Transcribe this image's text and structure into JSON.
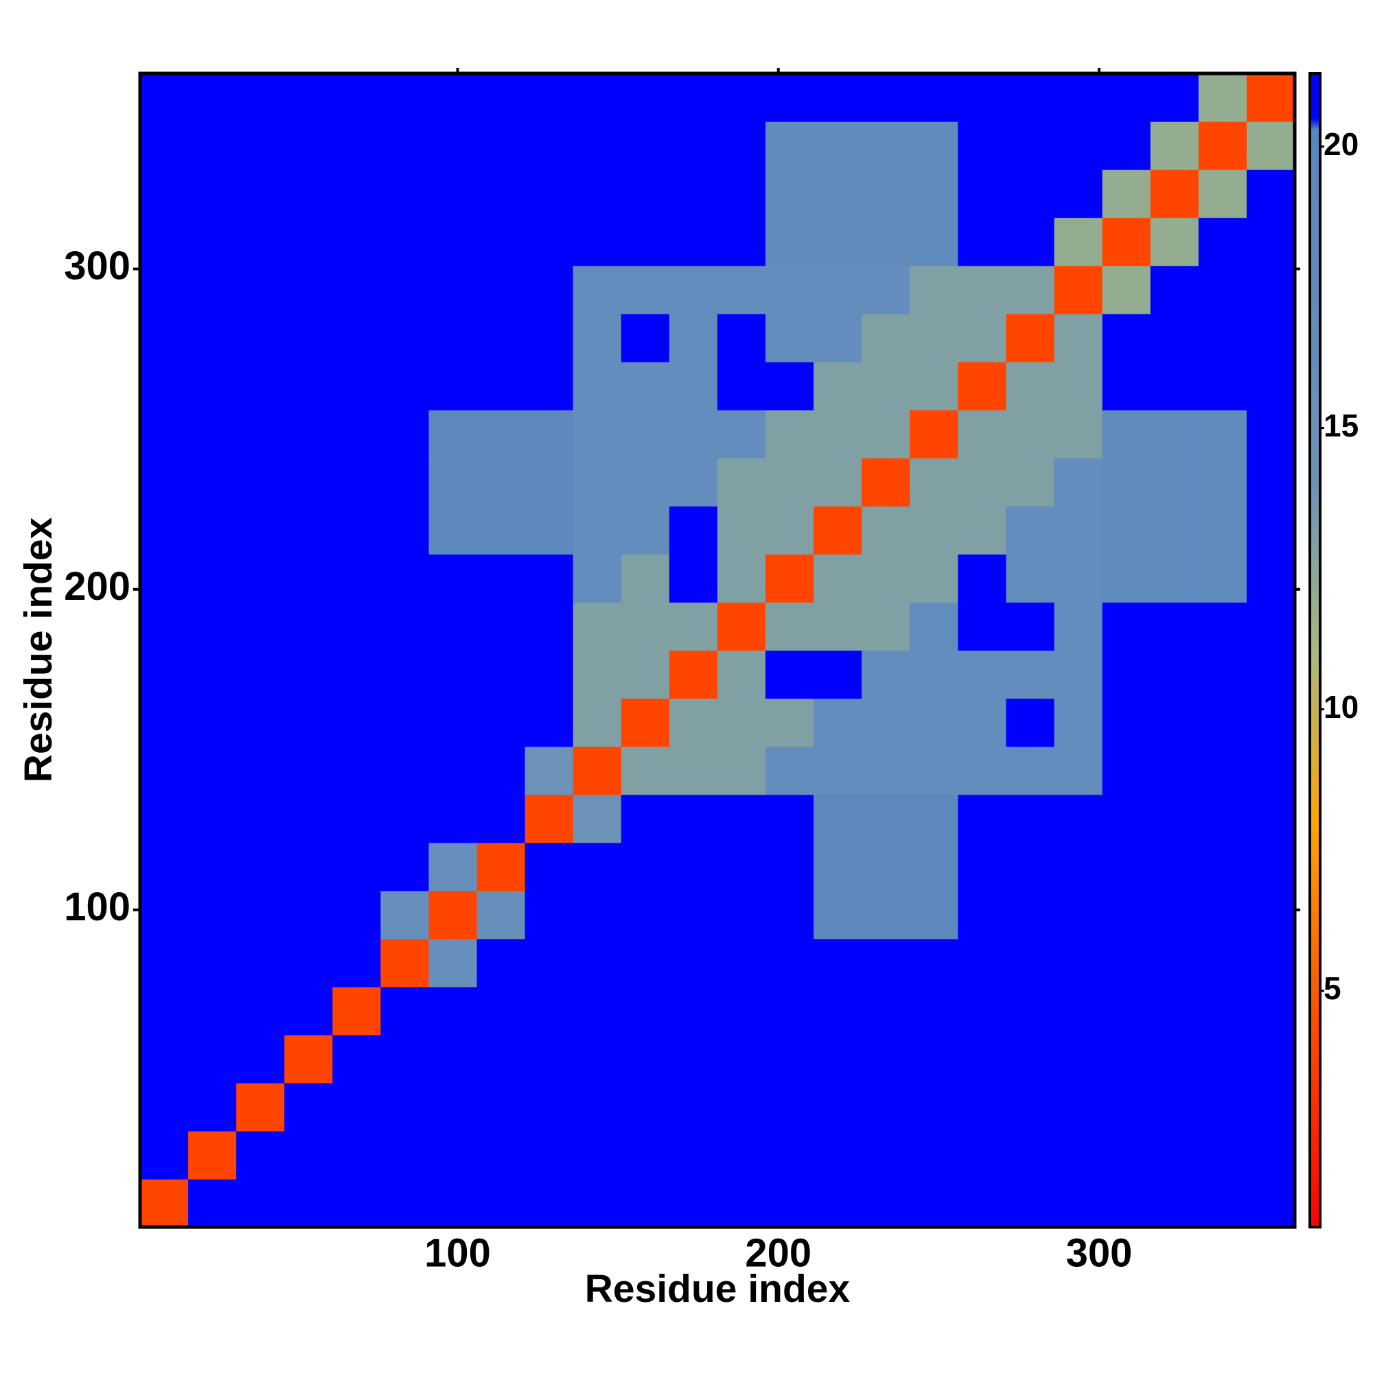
{
  "chart_data": {
    "type": "heatmap",
    "xlabel": "Residue index",
    "ylabel": "Residue index",
    "x_bins": [
      1,
      16,
      31,
      46,
      61,
      76,
      91,
      106,
      121,
      136,
      151,
      166,
      181,
      196,
      211,
      226,
      241,
      256,
      271,
      286,
      301,
      316,
      331,
      346,
      361
    ],
    "y_bins": [
      1,
      16,
      31,
      46,
      61,
      76,
      91,
      106,
      121,
      136,
      151,
      166,
      181,
      196,
      211,
      226,
      241,
      256,
      271,
      286,
      301,
      316,
      331,
      346,
      361
    ],
    "values": [
      [
        4,
        21,
        21,
        21,
        21,
        21,
        21,
        21,
        21,
        21,
        21,
        21,
        21,
        21,
        21,
        21,
        21,
        21,
        21,
        21,
        21,
        21,
        21,
        21
      ],
      [
        21,
        4,
        21,
        21,
        21,
        21,
        21,
        21,
        21,
        21,
        21,
        21,
        21,
        21,
        21,
        21,
        21,
        21,
        21,
        21,
        21,
        21,
        21,
        21
      ],
      [
        21,
        21,
        4,
        21,
        21,
        21,
        21,
        21,
        21,
        21,
        21,
        21,
        21,
        21,
        21,
        21,
        21,
        21,
        21,
        21,
        21,
        21,
        21,
        21
      ],
      [
        21,
        21,
        21,
        4,
        21,
        21,
        21,
        21,
        21,
        21,
        21,
        21,
        21,
        21,
        21,
        21,
        21,
        21,
        21,
        21,
        21,
        21,
        21,
        21
      ],
      [
        21,
        21,
        21,
        21,
        4,
        21,
        21,
        21,
        21,
        21,
        21,
        21,
        21,
        21,
        21,
        21,
        21,
        21,
        21,
        21,
        21,
        21,
        21,
        21
      ],
      [
        21,
        21,
        21,
        21,
        21,
        4,
        16,
        21,
        21,
        21,
        21,
        21,
        21,
        21,
        21,
        21,
        21,
        21,
        21,
        21,
        21,
        21,
        21,
        21
      ],
      [
        21,
        21,
        21,
        21,
        21,
        16,
        4,
        16,
        21,
        21,
        21,
        21,
        21,
        21,
        19,
        19,
        19,
        21,
        21,
        21,
        21,
        21,
        21,
        21
      ],
      [
        21,
        21,
        21,
        21,
        21,
        21,
        16,
        4,
        21,
        21,
        21,
        21,
        21,
        21,
        19,
        19,
        19,
        21,
        21,
        21,
        21,
        21,
        21,
        21
      ],
      [
        21,
        21,
        21,
        21,
        21,
        21,
        21,
        21,
        4,
        14,
        21,
        21,
        21,
        21,
        19,
        19,
        19,
        21,
        21,
        21,
        21,
        21,
        21,
        21
      ],
      [
        21,
        21,
        21,
        21,
        21,
        21,
        21,
        21,
        14,
        4,
        13,
        13,
        13,
        17,
        17,
        17,
        17,
        17,
        17,
        17,
        21,
        21,
        21,
        21
      ],
      [
        21,
        21,
        21,
        21,
        21,
        21,
        21,
        21,
        21,
        13,
        4,
        13,
        13,
        13,
        17,
        17,
        17,
        17,
        21,
        17,
        21,
        21,
        21,
        21
      ],
      [
        21,
        21,
        21,
        21,
        21,
        21,
        21,
        21,
        21,
        13,
        13,
        4,
        13,
        21,
        21,
        17,
        17,
        17,
        17,
        17,
        21,
        21,
        21,
        21
      ],
      [
        21,
        21,
        21,
        21,
        21,
        21,
        21,
        21,
        21,
        13,
        13,
        13,
        4,
        13,
        13,
        13,
        17,
        21,
        21,
        17,
        21,
        21,
        21,
        21
      ],
      [
        21,
        21,
        21,
        21,
        21,
        21,
        21,
        21,
        21,
        17,
        13,
        21,
        13,
        4,
        13,
        13,
        13,
        21,
        17,
        17,
        18,
        18,
        18,
        21
      ],
      [
        21,
        21,
        21,
        21,
        21,
        21,
        19,
        19,
        19,
        17,
        17,
        21,
        13,
        13,
        4,
        13,
        13,
        13,
        17,
        17,
        18,
        18,
        18,
        21
      ],
      [
        21,
        21,
        21,
        21,
        21,
        21,
        19,
        19,
        19,
        17,
        17,
        17,
        13,
        13,
        13,
        4,
        13,
        13,
        13,
        17,
        18,
        18,
        18,
        21
      ],
      [
        21,
        21,
        21,
        21,
        21,
        21,
        19,
        19,
        19,
        17,
        17,
        17,
        17,
        13,
        13,
        13,
        4,
        13,
        13,
        13,
        18,
        18,
        18,
        21
      ],
      [
        21,
        21,
        21,
        21,
        21,
        21,
        21,
        21,
        21,
        17,
        17,
        17,
        21,
        21,
        13,
        13,
        13,
        4,
        13,
        13,
        21,
        21,
        21,
        21
      ],
      [
        21,
        21,
        21,
        21,
        21,
        21,
        21,
        21,
        21,
        17,
        21,
        17,
        21,
        17,
        17,
        13,
        13,
        13,
        4,
        13,
        21,
        21,
        21,
        21
      ],
      [
        21,
        21,
        21,
        21,
        21,
        21,
        21,
        21,
        21,
        17,
        17,
        17,
        17,
        17,
        17,
        17,
        13,
        13,
        13,
        4,
        12,
        21,
        21,
        21
      ],
      [
        21,
        21,
        21,
        21,
        21,
        21,
        21,
        21,
        21,
        21,
        21,
        21,
        21,
        18,
        18,
        18,
        18,
        21,
        21,
        12,
        4,
        12,
        21,
        21
      ],
      [
        21,
        21,
        21,
        21,
        21,
        21,
        21,
        21,
        21,
        21,
        21,
        21,
        21,
        18,
        18,
        18,
        18,
        21,
        21,
        21,
        12,
        4,
        12,
        21
      ],
      [
        21,
        21,
        21,
        21,
        21,
        21,
        21,
        21,
        21,
        21,
        21,
        21,
        21,
        18,
        18,
        18,
        18,
        21,
        21,
        21,
        21,
        12,
        4,
        12
      ],
      [
        21,
        21,
        21,
        21,
        21,
        21,
        21,
        21,
        21,
        21,
        21,
        21,
        21,
        21,
        21,
        21,
        21,
        21,
        21,
        21,
        21,
        21,
        12,
        4
      ]
    ],
    "xlim": [
      1,
      361
    ],
    "ylim": [
      1,
      361
    ],
    "xticks": [
      100,
      200,
      300
    ],
    "yticks": [
      100,
      200,
      300
    ],
    "zlim": [
      0.8,
      21.3
    ],
    "zticks": [
      5,
      10,
      15,
      20
    ],
    "colorscale": [
      {
        "value": 0.8,
        "color": "#ff0000"
      },
      {
        "value": 5,
        "color": "#ff5a00"
      },
      {
        "value": 8,
        "color": "#ffa500"
      },
      {
        "value": 11,
        "color": "#a9b97c"
      },
      {
        "value": 14,
        "color": "#6b93b8"
      },
      {
        "value": 20.3,
        "color": "#5a86c0"
      },
      {
        "value": 20.5,
        "color": "#0000ff"
      },
      {
        "value": 21.3,
        "color": "#0000ff"
      }
    ]
  }
}
